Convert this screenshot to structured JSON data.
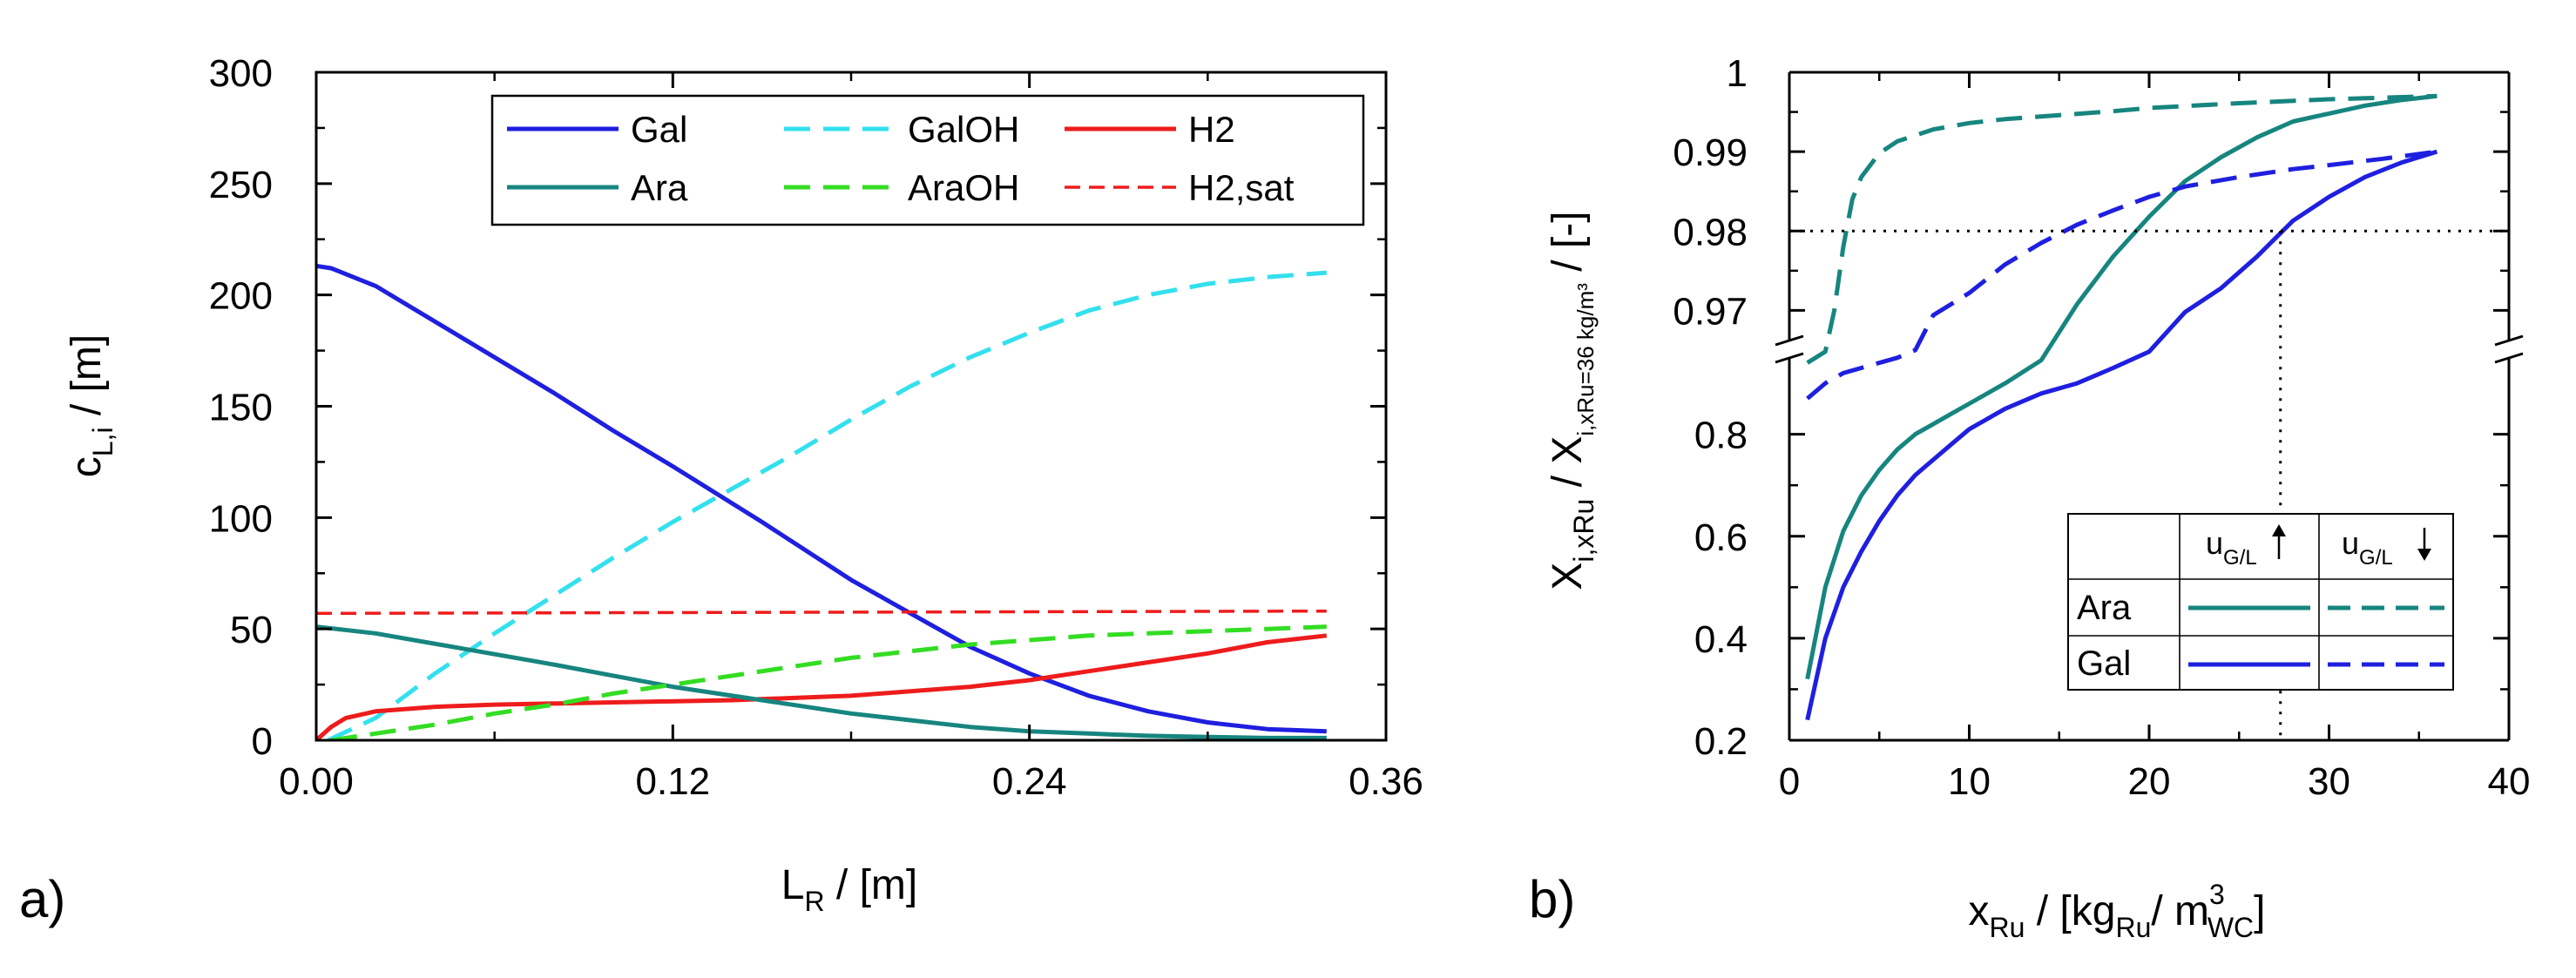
{
  "chart_data": [
    {
      "type": "line",
      "panel_label": "a)",
      "ylabel": {
        "main": "c",
        "sub": "L,i",
        "unit": " / [m]"
      },
      "xlabel": {
        "main": "L",
        "sub": "R",
        "unit": " / [m]"
      },
      "xlim": [
        0,
        0.36
      ],
      "ylim": [
        0,
        300
      ],
      "xticks": [
        0.0,
        0.12,
        0.24,
        0.36
      ],
      "xtick_labels": [
        "0.00",
        "0.12",
        "0.24",
        "0.36"
      ],
      "xminor": [
        0.06,
        0.18,
        0.3
      ],
      "yticks": [
        0,
        50,
        100,
        150,
        200,
        250,
        300
      ],
      "ytick_labels": [
        "0",
        "50",
        "100",
        "150",
        "200",
        "250",
        "300"
      ],
      "yminor": [
        25,
        75,
        125,
        175,
        225,
        275
      ],
      "legend_position": "top-right",
      "legend_columns": 3,
      "series": [
        {
          "name": "Gal",
          "color": "#1f1fe0",
          "style": "solid",
          "x": [
            0,
            0.005,
            0.02,
            0.05,
            0.08,
            0.1,
            0.12,
            0.15,
            0.18,
            0.2,
            0.22,
            0.24,
            0.26,
            0.28,
            0.3,
            0.32,
            0.34
          ],
          "y": [
            213,
            212,
            204,
            180,
            156,
            139,
            123,
            98,
            72,
            57,
            42,
            30,
            20,
            13,
            8,
            5,
            4
          ]
        },
        {
          "name": "GalOH",
          "color": "#33e0ee",
          "style": "dashed",
          "x": [
            0.004,
            0.02,
            0.04,
            0.06,
            0.08,
            0.1,
            0.12,
            0.14,
            0.16,
            0.18,
            0.2,
            0.22,
            0.24,
            0.26,
            0.28,
            0.3,
            0.32,
            0.34
          ],
          "y": [
            0,
            10,
            30,
            48,
            65,
            82,
            98,
            113,
            128,
            144,
            159,
            172,
            183,
            193,
            200,
            205,
            208,
            210
          ]
        },
        {
          "name": "H2",
          "color": "#ee1c1c",
          "style": "solid",
          "x": [
            0,
            0.005,
            0.01,
            0.02,
            0.04,
            0.06,
            0.1,
            0.14,
            0.18,
            0.2,
            0.22,
            0.24,
            0.26,
            0.28,
            0.3,
            0.32,
            0.34
          ],
          "y": [
            0,
            6,
            10,
            13,
            15,
            16,
            17,
            18,
            20,
            22,
            24,
            27,
            31,
            35,
            39,
            44,
            47
          ]
        },
        {
          "name": "Ara",
          "color": "#17857f",
          "style": "solid",
          "x": [
            0,
            0.02,
            0.05,
            0.08,
            0.1,
            0.12,
            0.15,
            0.18,
            0.2,
            0.22,
            0.24,
            0.26,
            0.28,
            0.3,
            0.32,
            0.34
          ],
          "y": [
            51,
            48,
            41,
            34,
            29,
            24,
            18,
            12,
            9,
            6,
            4,
            3,
            2,
            1.5,
            1,
            1
          ]
        },
        {
          "name": "AraOH",
          "color": "#33dd22",
          "style": "dashed",
          "x": [
            0.005,
            0.02,
            0.04,
            0.06,
            0.08,
            0.1,
            0.12,
            0.14,
            0.16,
            0.18,
            0.2,
            0.22,
            0.24,
            0.26,
            0.28,
            0.3,
            0.32,
            0.34
          ],
          "y": [
            0,
            3,
            7,
            12,
            16,
            21,
            25,
            29,
            33,
            37,
            40,
            43,
            45,
            47,
            48,
            49,
            50,
            51
          ]
        },
        {
          "name": "H2,sat",
          "color": "#ee1c1c",
          "style": "dashed-short",
          "x": [
            0,
            0.34
          ],
          "y": [
            57,
            58
          ]
        }
      ]
    },
    {
      "type": "line",
      "panel_label": "b)",
      "ylabel": {
        "text1": "X",
        "sub1": "i,xRu",
        "mid": " / X",
        "sub2": "i,xRu=36 kg/m³",
        "unit": " / [-]"
      },
      "xlabel": {
        "main": "x",
        "sub1": "Ru",
        "mid": " / [kg",
        "sub2": "Ru",
        "mid2": "/ m",
        "sup": "3",
        "sub3": "WC",
        "unit": "]"
      },
      "xlim": [
        0,
        40
      ],
      "xticks": [
        0,
        10,
        20,
        30,
        40
      ],
      "xtick_labels": [
        "0",
        "10",
        "20",
        "30",
        "40"
      ],
      "xminor": [
        5,
        15,
        25,
        35
      ],
      "y_axis_broken": true,
      "upper_ylim": [
        0.965,
        1.0
      ],
      "upper_yticks": [
        0.97,
        0.98,
        0.99,
        1.0
      ],
      "upper_ytick_labels": [
        "0.97",
        "0.98",
        "0.99",
        "1"
      ],
      "upper_yminor": [
        0.975,
        0.985,
        0.995
      ],
      "lower_ylim": [
        0.2,
        0.965
      ],
      "lower_yticks": [
        0.2,
        0.4,
        0.6,
        0.8
      ],
      "lower_ytick_labels": [
        "0.2",
        "0.4",
        "0.6",
        "0.8"
      ],
      "lower_yminor": [
        0.3,
        0.5,
        0.7
      ],
      "reference_lines": {
        "y": 0.98,
        "x": 27.3,
        "style": "dotted"
      },
      "legend": {
        "position": "bottom-right",
        "col_headers": [
          {
            "main": "u",
            "sub": "G/L",
            "arrow": "up"
          },
          {
            "main": "u",
            "sub": "G/L",
            "arrow": "down"
          }
        ],
        "rows": [
          "Ara",
          "Gal"
        ]
      },
      "series": [
        {
          "name": "Ara",
          "condition": "u_G/L up",
          "color": "#17857f",
          "style": "solid",
          "x": [
            1,
            2,
            3,
            4,
            5,
            6,
            7,
            8,
            9,
            10,
            12,
            14,
            16,
            18,
            20,
            22,
            24,
            26,
            28,
            30,
            32,
            34,
            36
          ],
          "y": [
            0.32,
            0.5,
            0.61,
            0.68,
            0.73,
            0.77,
            0.8,
            0.82,
            0.84,
            0.86,
            0.9,
            0.945,
            0.9708,
            0.9768,
            0.9818,
            0.9863,
            0.9893,
            0.9918,
            0.9938,
            0.9948,
            0.9958,
            0.9965,
            0.997
          ]
        },
        {
          "name": "Ara",
          "condition": "u_G/L down",
          "color": "#17857f",
          "style": "dashed",
          "x": [
            1,
            2,
            2.5,
            3,
            3.5,
            4,
            5,
            6,
            8,
            10,
            12,
            15,
            18,
            20,
            25,
            30,
            33,
            36
          ],
          "y": [
            0.94,
            0.962,
            0.97,
            0.978,
            0.984,
            0.9868,
            0.9898,
            0.9913,
            0.9928,
            0.9936,
            0.9941,
            0.9946,
            0.9951,
            0.9955,
            0.9961,
            0.9966,
            0.9968,
            0.997
          ]
        },
        {
          "name": "Gal",
          "condition": "u_G/L up",
          "color": "#1f1fe0",
          "style": "solid",
          "x": [
            1,
            2,
            3,
            4,
            5,
            6,
            7,
            8,
            9,
            10,
            12,
            14,
            16,
            18,
            20,
            22,
            24,
            26,
            28,
            30,
            32,
            34,
            36
          ],
          "y": [
            0.24,
            0.4,
            0.5,
            0.57,
            0.63,
            0.68,
            0.72,
            0.75,
            0.78,
            0.81,
            0.85,
            0.88,
            0.9,
            0.93,
            0.962,
            0.9698,
            0.9728,
            0.9768,
            0.9813,
            0.9843,
            0.9868,
            0.9886,
            0.99
          ]
        },
        {
          "name": "Gal",
          "condition": "u_G/L down",
          "color": "#1f1fe0",
          "style": "dashed",
          "x": [
            1,
            2,
            3,
            4,
            5,
            6,
            7,
            8,
            10,
            12,
            14,
            16,
            18,
            20,
            22,
            25,
            28,
            30,
            33,
            36
          ],
          "y": [
            0.87,
            0.9,
            0.92,
            0.93,
            0.94,
            0.95,
            0.965,
            0.9694,
            0.9722,
            0.9758,
            0.9785,
            0.9808,
            0.9826,
            0.9843,
            0.9856,
            0.9868,
            0.9878,
            0.9883,
            0.9891,
            0.99
          ]
        }
      ]
    }
  ]
}
